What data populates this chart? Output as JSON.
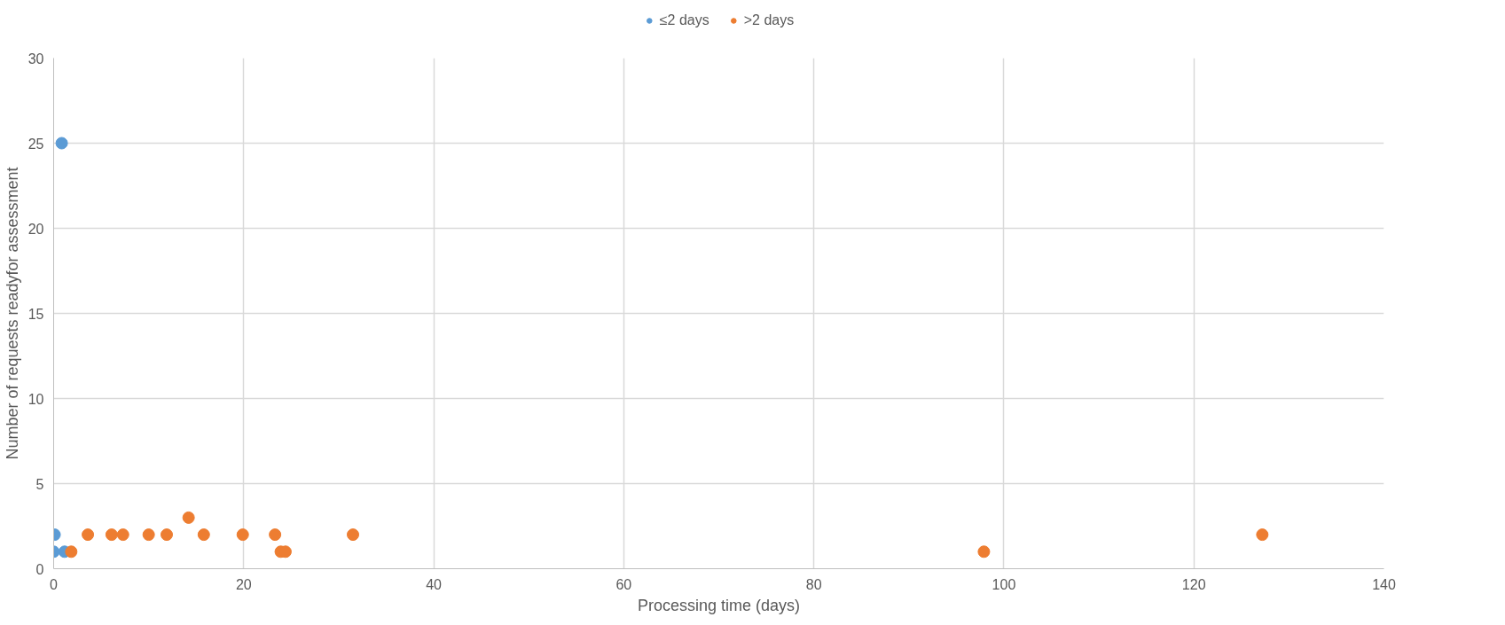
{
  "chart_data": {
    "type": "scatter",
    "xlabel": "Processing time (days)",
    "ylabel": "Number of requests readyfor assessment",
    "series": [
      {
        "name": "≤2 days",
        "color": "#5b9bd5",
        "x": [
          0.1,
          0,
          1.15,
          0.85
        ],
        "values": [
          2,
          1,
          1,
          25
        ]
      },
      {
        "name": ">2 days",
        "color": "#ed7d31",
        "x": [
          1.85,
          3.6,
          6.1,
          7.3,
          10,
          11.9,
          14.2,
          15.8,
          19.9,
          23.3,
          23.9,
          24.4,
          31.5,
          97.9,
          127.2
        ],
        "values": [
          1,
          2,
          2,
          2,
          2,
          2,
          3,
          2,
          2,
          2,
          1,
          1,
          2,
          1,
          2
        ]
      }
    ],
    "xlim": [
      0,
      140
    ],
    "xticks": [
      0,
      20,
      40,
      60,
      80,
      100,
      120,
      140
    ],
    "ylim": [
      0,
      30
    ],
    "yticks": [
      0,
      5,
      10,
      15,
      20,
      25,
      30
    ],
    "grid": true,
    "legend": "top",
    "marker": "circle"
  }
}
